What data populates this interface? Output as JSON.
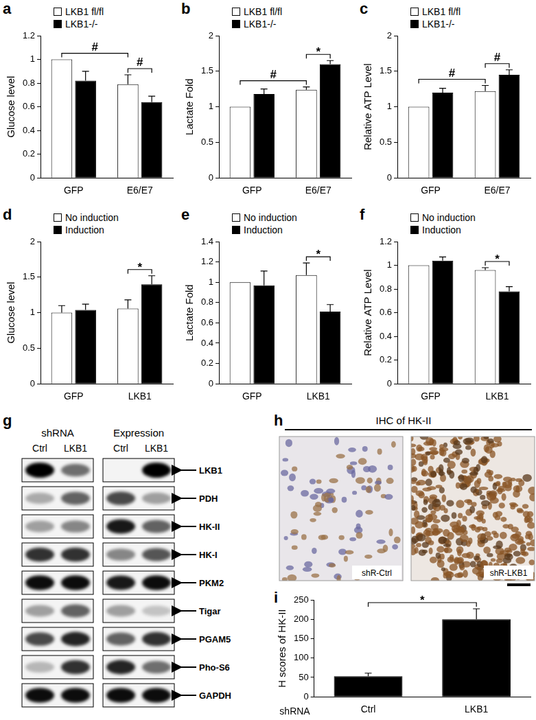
{
  "chart_data": [
    {
      "panel": "a",
      "type": "bar",
      "ylabel": "Glucose level",
      "categories": [
        "GFP",
        "E6/E7"
      ],
      "series": [
        {
          "name": "LKB1 fl/fl",
          "color": "#ffffff",
          "values": [
            1.0,
            0.79
          ],
          "errors": [
            0,
            0.08
          ]
        },
        {
          "name": "LKB1-/-",
          "color": "#000000",
          "values": [
            0.82,
            0.64
          ],
          "errors": [
            0.08,
            0.05
          ]
        }
      ],
      "ylim": [
        0,
        1.2
      ],
      "yticks": [
        0,
        0.2,
        0.4,
        0.6,
        0.8,
        1,
        1.2
      ],
      "grid": false,
      "legend": "top-left",
      "annotations": [
        {
          "text": "#",
          "from": [
            "LKB1 fl/fl",
            "GFP"
          ],
          "to": [
            "LKB1 fl/fl",
            "E6/E7"
          ]
        },
        {
          "text": "#",
          "from": [
            "LKB1 fl/fl",
            "E6/E7"
          ],
          "to": [
            "LKB1-/-",
            "E6/E7"
          ]
        }
      ]
    },
    {
      "panel": "b",
      "type": "bar",
      "ylabel": "Lactate Fold",
      "categories": [
        "GFP",
        "E6/E7"
      ],
      "series": [
        {
          "name": "LKB1 fl/fl",
          "color": "#ffffff",
          "values": [
            1.0,
            1.24
          ],
          "errors": [
            0,
            0.04
          ]
        },
        {
          "name": "LKB1-/-",
          "color": "#000000",
          "values": [
            1.18,
            1.6
          ],
          "errors": [
            0.07,
            0.05
          ]
        }
      ],
      "ylim": [
        0,
        2
      ],
      "yticks": [
        0,
        0.5,
        1,
        1.5,
        2
      ],
      "grid": false,
      "legend": "top-left",
      "annotations": [
        {
          "text": "#",
          "from": [
            "LKB1 fl/fl",
            "GFP"
          ],
          "to": [
            "LKB1 fl/fl",
            "E6/E7"
          ]
        },
        {
          "text": "*",
          "from": [
            "LKB1 fl/fl",
            "E6/E7"
          ],
          "to": [
            "LKB1-/-",
            "E6/E7"
          ]
        }
      ]
    },
    {
      "panel": "c",
      "type": "bar",
      "ylabel": "Relative ATP Level",
      "categories": [
        "GFP",
        "E6/E7"
      ],
      "series": [
        {
          "name": "LKB1 fl/fl",
          "color": "#ffffff",
          "values": [
            1.0,
            1.22
          ],
          "errors": [
            0,
            0.08
          ]
        },
        {
          "name": "LKB1-/-",
          "color": "#000000",
          "values": [
            1.2,
            1.45
          ],
          "errors": [
            0.06,
            0.07
          ]
        }
      ],
      "ylim": [
        0,
        2
      ],
      "yticks": [
        0,
        0.5,
        1,
        1.5,
        2
      ],
      "grid": false,
      "legend": "top-left",
      "annotations": [
        {
          "text": "#",
          "from": [
            "LKB1 fl/fl",
            "GFP"
          ],
          "to": [
            "LKB1 fl/fl",
            "E6/E7"
          ]
        },
        {
          "text": "#",
          "from": [
            "LKB1 fl/fl",
            "E6/E7"
          ],
          "to": [
            "LKB1-/-",
            "E6/E7"
          ]
        }
      ]
    },
    {
      "panel": "d",
      "type": "bar",
      "ylabel": "Glucose level",
      "categories": [
        "GFP",
        "LKB1"
      ],
      "series": [
        {
          "name": "No induction",
          "color": "#ffffff",
          "values": [
            1.0,
            1.06
          ],
          "errors": [
            0.1,
            0.12
          ]
        },
        {
          "name": "Induction",
          "color": "#000000",
          "values": [
            1.04,
            1.4
          ],
          "errors": [
            0.08,
            0.12
          ]
        }
      ],
      "ylim": [
        0,
        2
      ],
      "yticks": [
        0,
        0.5,
        1,
        1.5,
        2
      ],
      "grid": false,
      "legend": "top-left",
      "annotations": [
        {
          "text": "*",
          "from": [
            "No induction",
            "LKB1"
          ],
          "to": [
            "Induction",
            "LKB1"
          ]
        }
      ]
    },
    {
      "panel": "e",
      "type": "bar",
      "ylabel": "Lactate Fold",
      "categories": [
        "GFP",
        "LKB1"
      ],
      "series": [
        {
          "name": "No induction",
          "color": "#ffffff",
          "values": [
            1.0,
            1.07
          ],
          "errors": [
            0,
            0.12
          ]
        },
        {
          "name": "Induction",
          "color": "#000000",
          "values": [
            0.97,
            0.71
          ],
          "errors": [
            0.14,
            0.07
          ]
        }
      ],
      "ylim": [
        0,
        1.4
      ],
      "yticks": [
        0,
        0.2,
        0.4,
        0.6,
        0.8,
        1,
        1.2,
        1.4
      ],
      "grid": false,
      "legend": "top-left",
      "annotations": [
        {
          "text": "*",
          "from": [
            "No induction",
            "LKB1"
          ],
          "to": [
            "Induction",
            "LKB1"
          ]
        }
      ]
    },
    {
      "panel": "f",
      "type": "bar",
      "ylabel": "Relative ATP Level",
      "categories": [
        "GFP",
        "LKB1"
      ],
      "series": [
        {
          "name": "No induction",
          "color": "#ffffff",
          "values": [
            1.0,
            0.96
          ],
          "errors": [
            0,
            0.02
          ]
        },
        {
          "name": "Induction",
          "color": "#000000",
          "values": [
            1.04,
            0.78
          ],
          "errors": [
            0.03,
            0.04
          ]
        }
      ],
      "ylim": [
        0,
        1.2
      ],
      "yticks": [
        0,
        0.2,
        0.4,
        0.6,
        0.8,
        1,
        1.2
      ],
      "grid": false,
      "legend": "top-left",
      "annotations": [
        {
          "text": "*",
          "from": [
            "No induction",
            "LKB1"
          ],
          "to": [
            "Induction",
            "LKB1"
          ]
        }
      ]
    },
    {
      "panel": "i",
      "type": "bar",
      "ylabel": "H scores of HK-II",
      "xlabel": "shRNA",
      "categories": [
        "Ctrl",
        "LKB1"
      ],
      "values": [
        53,
        200
      ],
      "errors": [
        8,
        27
      ],
      "color": "#000000",
      "ylim": [
        0,
        250
      ],
      "yticks": [
        0,
        50,
        100,
        150,
        200,
        250
      ],
      "grid": false,
      "annotations": [
        {
          "text": "*",
          "from": "Ctrl",
          "to": "LKB1"
        }
      ]
    }
  ],
  "blot": {
    "panel": "g",
    "groups": [
      {
        "label": "shRNA",
        "lanes": [
          "Ctrl",
          "LKB1"
        ]
      },
      {
        "label": "Expression",
        "lanes": [
          "Ctrl",
          "LKB1"
        ]
      }
    ],
    "rows": [
      {
        "label": "LKB1",
        "intensity": [
          1.0,
          0.55,
          0.0,
          1.0
        ]
      },
      {
        "label": "PDH",
        "intensity": [
          0.3,
          0.6,
          0.7,
          0.35
        ]
      },
      {
        "label": "HK-II",
        "intensity": [
          0.35,
          0.45,
          0.9,
          0.6
        ]
      },
      {
        "label": "HK-I",
        "intensity": [
          0.8,
          0.8,
          0.45,
          0.65
        ]
      },
      {
        "label": "PKM2",
        "intensity": [
          0.95,
          0.95,
          0.9,
          0.95
        ]
      },
      {
        "label": "Tigar",
        "intensity": [
          0.35,
          0.6,
          0.35,
          0.2
        ]
      },
      {
        "label": "PGAM5",
        "intensity": [
          0.7,
          0.85,
          0.6,
          0.8
        ]
      },
      {
        "label": "Pho-S6",
        "intensity": [
          0.25,
          0.8,
          0.85,
          0.55
        ]
      },
      {
        "label": "GAPDH",
        "intensity": [
          0.95,
          0.95,
          0.95,
          0.95
        ]
      }
    ]
  },
  "ihc": {
    "panel": "h",
    "title": "IHC of HK-II",
    "images": [
      "shR-Ctrl",
      "shR-LKB1"
    ]
  }
}
